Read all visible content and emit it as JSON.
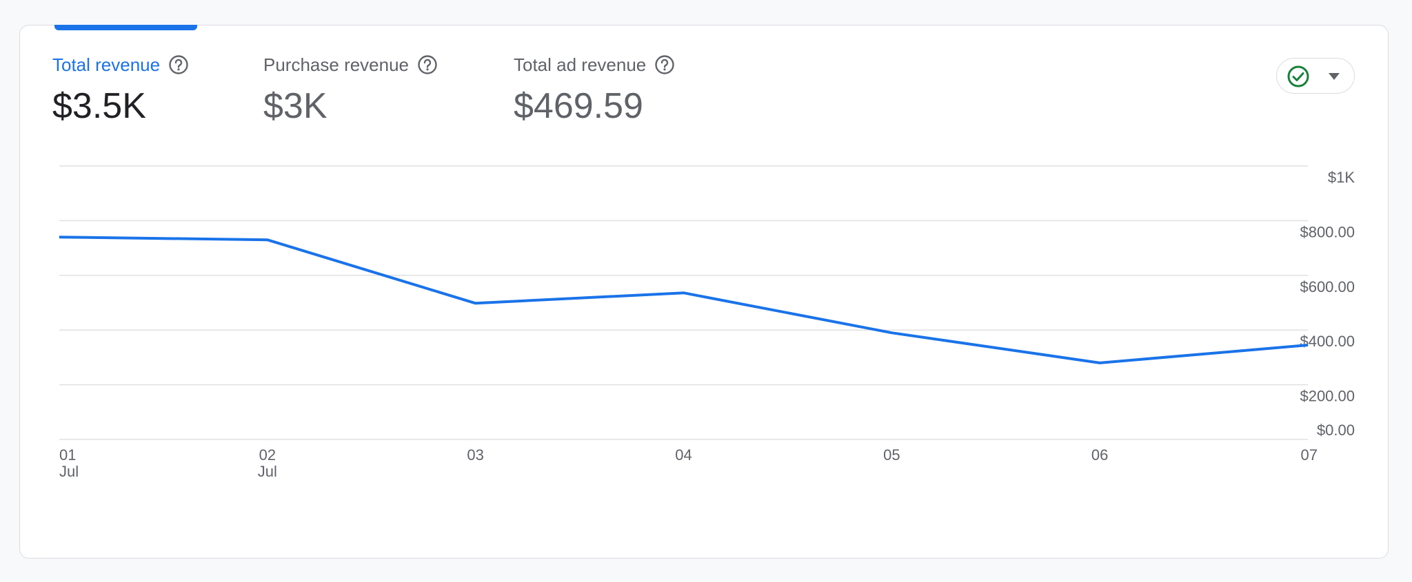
{
  "metrics": [
    {
      "label": "Total revenue",
      "value": "$3.5K"
    },
    {
      "label": "Purchase revenue",
      "value": "$3K"
    },
    {
      "label": "Total ad revenue",
      "value": "$469.59"
    }
  ],
  "status_icon": "check-circle-icon",
  "colors": {
    "accent": "#1a73e8",
    "success": "#188038",
    "grid": "#e0e0e0",
    "text": "#5f6368"
  },
  "chart_data": {
    "type": "line",
    "x": [
      "01",
      "02",
      "03",
      "04",
      "05",
      "06",
      "07"
    ],
    "x_sublabels": [
      "Jul",
      "Jul",
      "",
      "",
      "",
      "",
      ""
    ],
    "series": [
      {
        "values": [
          740,
          730,
          498,
          536,
          390,
          280,
          345
        ]
      }
    ],
    "y_ticks": [
      "$1K",
      "$800.00",
      "$600.00",
      "$400.00",
      "$200.00",
      "$0.00"
    ],
    "ylim": [
      0,
      1000
    ],
    "grid": true
  }
}
